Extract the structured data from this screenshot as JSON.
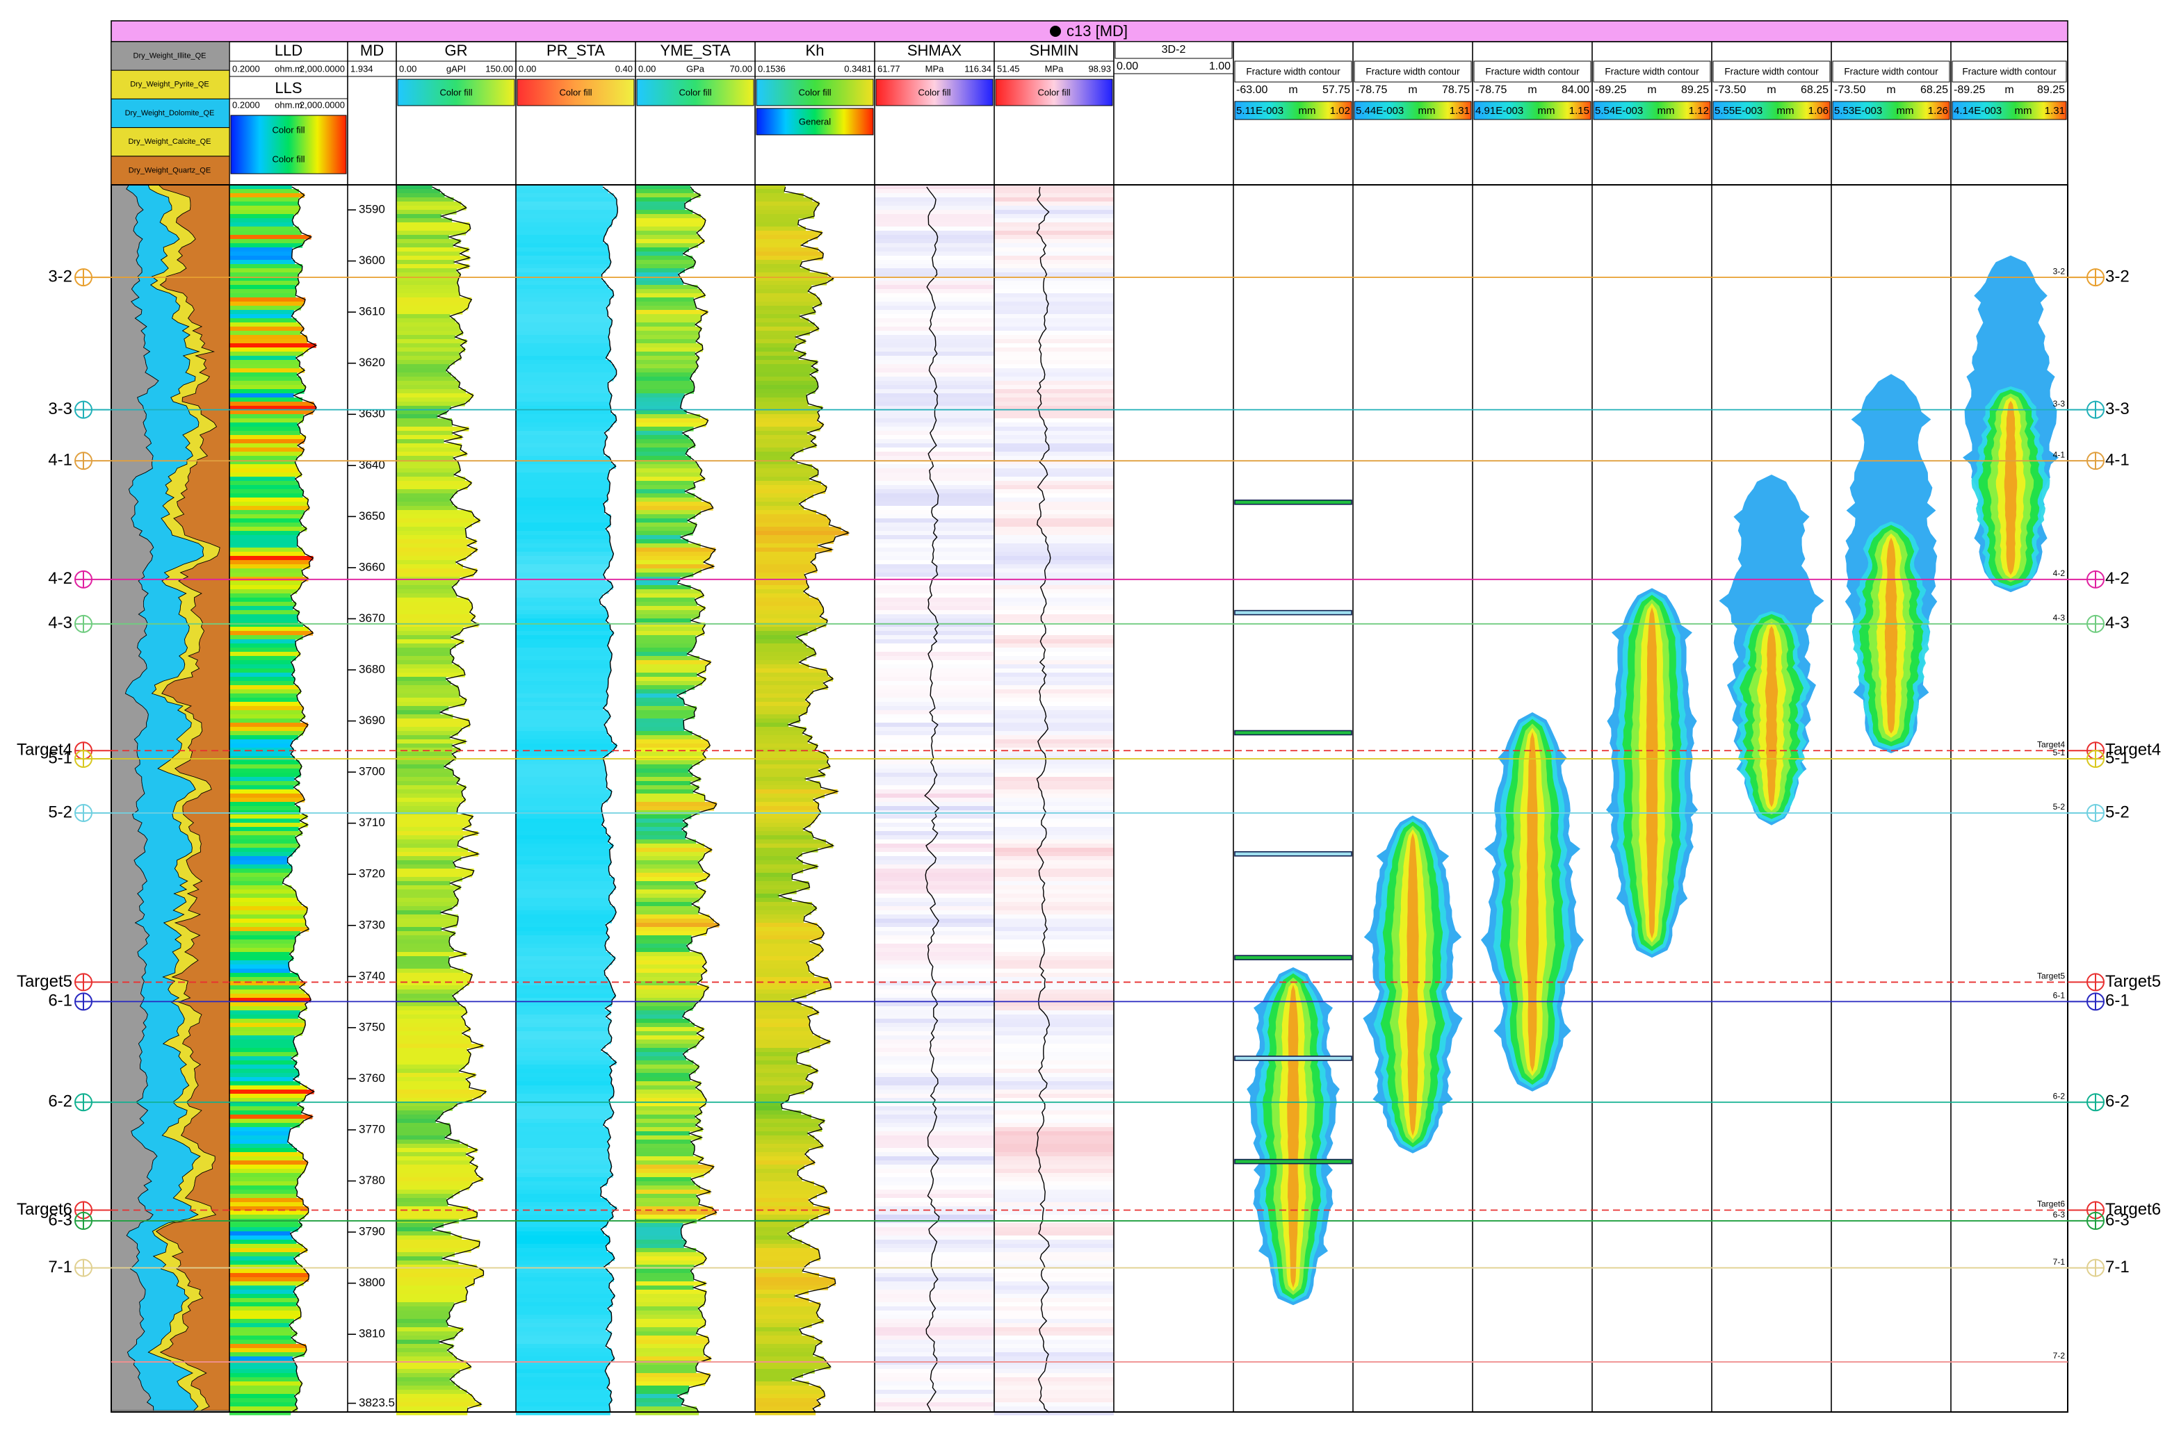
{
  "title": "c13 [MD]",
  "depth_range": [
    3585.1,
    3825.2
  ],
  "depth_ticks": [
    3590,
    3600,
    3610,
    3620,
    3630,
    3640,
    3650,
    3660,
    3670,
    3680,
    3690,
    3700,
    3710,
    3720,
    3730,
    3740,
    3750,
    3760,
    3770,
    3780,
    3790,
    3800,
    3810,
    3823.5
  ],
  "lithology_legend": [
    "Dry_Weight_Illite_QE",
    "Dry_Weight_Pyrite_QE",
    "Dry_Weight_Dolomite_QE",
    "Dry_Weight_Calcite_QE",
    "Dry_Weight_Quartz_QE"
  ],
  "tracks": [
    {
      "name": "LLD",
      "scale": {
        "left": "0.2000",
        "unit": "ohm.m",
        "right": "2,000.0000"
      },
      "sub": {
        "name": "LLS",
        "scale": {
          "left": "0.2000",
          "unit": "ohm.m",
          "right": "2,000.0000"
        }
      },
      "fills": [
        "Color fill",
        "Color fill"
      ]
    },
    {
      "name": "MD",
      "scale": {
        "left": "1.934"
      }
    },
    {
      "name": "GR",
      "scale": {
        "left": "0.00",
        "unit": "gAPI",
        "right": "150.00"
      },
      "fills": [
        "Color fill"
      ]
    },
    {
      "name": "PR_STA",
      "scale": {
        "left": "0.00",
        "right": "0.40"
      },
      "fills": [
        "Color fill"
      ]
    },
    {
      "name": "YME_STA",
      "scale": {
        "left": "0.00",
        "unit": "GPa",
        "right": "70.00"
      },
      "fills": [
        "Color fill"
      ]
    },
    {
      "name": "Kh",
      "scale": {
        "left": "0.1536",
        "right": "0.3481"
      },
      "fills": [
        "Color fill",
        "General"
      ]
    },
    {
      "name": "SHMAX",
      "scale": {
        "left": "61.77",
        "unit": "MPa",
        "right": "116.34"
      },
      "fills": [
        "Color fill"
      ]
    },
    {
      "name": "SHMIN",
      "scale": {
        "left": "51.45",
        "unit": "MPa",
        "right": "98.93"
      },
      "fills": [
        "Color fill"
      ]
    },
    {
      "name": "3D-2",
      "scale": {
        "left": "0.00",
        "right": "1.00"
      }
    },
    {
      "name": "Fracture width contour",
      "scale": {
        "left": "-63.00",
        "unit": "m",
        "right": "57.75"
      },
      "color_scale": {
        "left": "5.11E-003",
        "unit": "mm",
        "right": "1.02"
      },
      "contour": {
        "top": 3738.2,
        "bottom": 3804.3
      }
    },
    {
      "name": "Fracture width contour",
      "scale": {
        "left": "-78.75",
        "unit": "m",
        "right": "78.75"
      },
      "color_scale": {
        "left": "5.44E-003",
        "unit": "mm",
        "right": "1.31"
      },
      "contour": {
        "top": 3708.5,
        "bottom": 3774.6
      }
    },
    {
      "name": "Fracture width contour",
      "scale": {
        "left": "-78.75",
        "unit": "m",
        "right": "84.00"
      },
      "color_scale": {
        "left": "4.91E-003",
        "unit": "mm",
        "right": "1.15"
      },
      "contour": {
        "top": 3688.3,
        "bottom": 3762.5
      }
    },
    {
      "name": "Fracture width contour",
      "scale": {
        "left": "-89.25",
        "unit": "m",
        "right": "89.25"
      },
      "color_scale": {
        "left": "5.54E-003",
        "unit": "mm",
        "right": "1.12"
      },
      "contour": {
        "top": 3664.0,
        "bottom": 3736.3
      }
    },
    {
      "name": "Fracture width contour",
      "scale": {
        "left": "-73.50",
        "unit": "m",
        "right": "68.25"
      },
      "color_scale": {
        "left": "5.55E-003",
        "unit": "mm",
        "right": "1.06"
      },
      "contour": {
        "top": 3641.8,
        "bottom": 3710.4
      }
    },
    {
      "name": "Fracture width contour",
      "scale": {
        "left": "-73.50",
        "unit": "m",
        "right": "68.25"
      },
      "color_scale": {
        "left": "5.53E-003",
        "unit": "mm",
        "right": "1.26"
      },
      "contour": {
        "top": 3622.1,
        "bottom": 3696.3
      }
    },
    {
      "name": "Fracture width contour",
      "scale": {
        "left": "-89.25",
        "unit": "m",
        "right": "89.25"
      },
      "color_scale": {
        "left": "4.14E-003",
        "unit": "mm",
        "right": "1.31"
      },
      "contour": {
        "top": 3598.9,
        "bottom": 3664.8
      }
    }
  ],
  "events": [
    {
      "depth": 3647.2,
      "color": "#20c040"
    },
    {
      "depth": 3668.8,
      "color": "#a0e0f0"
    },
    {
      "depth": 3692.3,
      "color": "#20c040"
    },
    {
      "depth": 3716.0,
      "color": "#a0e0f0"
    },
    {
      "depth": 3736.3,
      "color": "#20c040"
    },
    {
      "depth": 3756.0,
      "color": "#a0e0f0"
    },
    {
      "depth": 3776.2,
      "color": "#20c040"
    }
  ],
  "markers": [
    {
      "name": "3-2",
      "depth": 3603.2,
      "color": "#e8a030",
      "dashed": false,
      "outside": true
    },
    {
      "name": "3-3",
      "depth": 3629.1,
      "color": "#20b0b8",
      "dashed": false,
      "outside": true
    },
    {
      "name": "4-1",
      "depth": 3639.1,
      "color": "#e0a040",
      "dashed": false,
      "outside": true
    },
    {
      "name": "4-2",
      "depth": 3662.3,
      "color": "#e020a0",
      "dashed": false,
      "outside": true
    },
    {
      "name": "4-3",
      "depth": 3671.0,
      "color": "#70cc80",
      "dashed": false,
      "outside": true
    },
    {
      "name": "Target4",
      "depth": 3695.8,
      "color": "#e83030",
      "dashed": true,
      "outside": true
    },
    {
      "name": "5-1",
      "depth": 3697.4,
      "color": "#d8c820",
      "dashed": false,
      "outside": true
    },
    {
      "name": "5-2",
      "depth": 3708.0,
      "color": "#70d0e0",
      "dashed": false,
      "outside": true
    },
    {
      "name": "Target5",
      "depth": 3741.1,
      "color": "#e83030",
      "dashed": true,
      "outside": true
    },
    {
      "name": "6-1",
      "depth": 3744.9,
      "color": "#2828c0",
      "dashed": false,
      "outside": true
    },
    {
      "name": "6-2",
      "depth": 3764.6,
      "color": "#10b090",
      "dashed": false,
      "outside": true
    },
    {
      "name": "Target6",
      "depth": 3785.7,
      "color": "#e83030",
      "dashed": true,
      "outside": true
    },
    {
      "name": "6-3",
      "depth": 3787.8,
      "color": "#20a040",
      "dashed": false,
      "outside": true
    },
    {
      "name": "7-1",
      "depth": 3797.0,
      "color": "#e0d090",
      "dashed": false,
      "outside": true
    },
    {
      "name": "7-2",
      "depth": 3815.4,
      "color": "#f09090",
      "dashed": false,
      "outside": false
    }
  ]
}
